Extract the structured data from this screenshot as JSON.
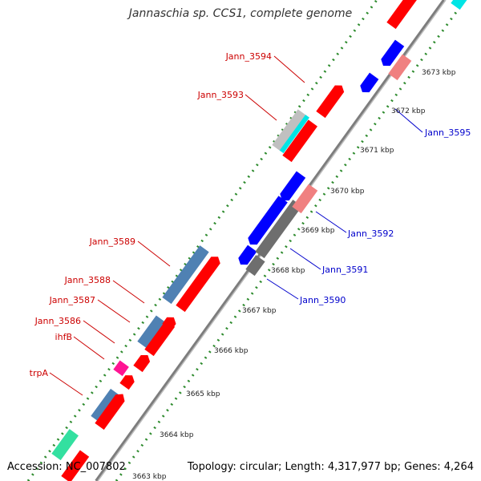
{
  "title": "Jannaschia sp. CCS1, complete genome",
  "footer": {
    "accession": "Accession: NC_007802",
    "topology": "Topology: circular; Length: 4,317,977 bp; Genes: 4,264"
  },
  "kbp_labels": [
    "3673 kbp",
    "3672 kbp",
    "3671 kbp",
    "3670 kbp",
    "3669 kbp",
    "3668 kbp",
    "3667 kbp",
    "3666 kbp",
    "3665 kbp",
    "3664 kbp",
    "3663 kbp"
  ],
  "gene_labels_left": [
    "Jann_3594",
    "Jann_3593",
    "Jann_3589",
    "Jann_3588",
    "Jann_3587",
    "Jann_3586",
    "ihfB",
    "trpA"
  ],
  "gene_labels_right": [
    "Jann_3595",
    "Jann_3592",
    "Jann_3591",
    "Jann_3590"
  ],
  "colors": {
    "forward_label": "#cc0000",
    "reverse_label": "#0000cc",
    "backbone": "#888888",
    "tick": "#2e8b2e",
    "red_gene": "#ff0000",
    "blue_gene": "#0000ff",
    "pink_gene": "#f08080",
    "steelblue_gene": "#4f81b3",
    "gray_gene": "#6e6e6e",
    "cyan_gene": "#00e5e5",
    "lightgray_gene": "#c0c0c0",
    "magenta_gene": "#ff1493",
    "green_gene": "#33e0a0"
  }
}
